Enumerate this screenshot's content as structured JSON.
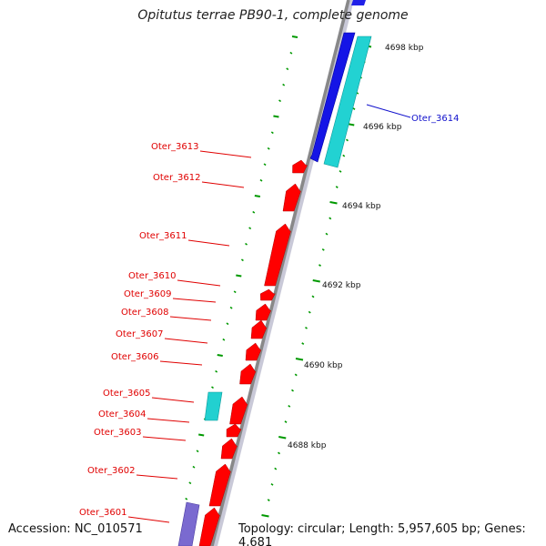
{
  "title": "Opitutus terrae PB90-1, complete genome",
  "accession": "Accession: NC_010571",
  "topology": "Topology: circular; Length: 5,957,605 bp; Genes: 4,681",
  "colors": {
    "forward_gene": "#ff0000",
    "reverse_gene": "#1010e0",
    "other_cyan": "#22d0d0",
    "other_purple": "#7a6ad0",
    "tick": "#009900",
    "backbone": "#999999",
    "left_label": "#e00000",
    "right_label": "#1010cc"
  },
  "left_labels": [
    {
      "text": "Oter_3613",
      "gene": 0
    },
    {
      "text": "Oter_3612",
      "gene": 1
    },
    {
      "text": "Oter_3611",
      "gene": 2
    },
    {
      "text": "Oter_3610",
      "gene": 3
    },
    {
      "text": "Oter_3609",
      "gene": 4
    },
    {
      "text": "Oter_3608",
      "gene": 5
    },
    {
      "text": "Oter_3607",
      "gene": 6
    },
    {
      "text": "Oter_3606",
      "gene": 7
    },
    {
      "text": "Oter_3605",
      "gene": 8
    },
    {
      "text": "Oter_3604",
      "gene": 9
    },
    {
      "text": "Oter_3603",
      "gene": 10
    },
    {
      "text": "Oter_3602",
      "gene": 11
    },
    {
      "text": "Oter_3601",
      "gene": 12
    }
  ],
  "right_labels": [
    {
      "text": "Oter_3614"
    }
  ],
  "kbp_labels": [
    "4698 kbp",
    "4696 kbp",
    "4694 kbp",
    "4692 kbp",
    "4690 kbp",
    "4688 kbp"
  ]
}
